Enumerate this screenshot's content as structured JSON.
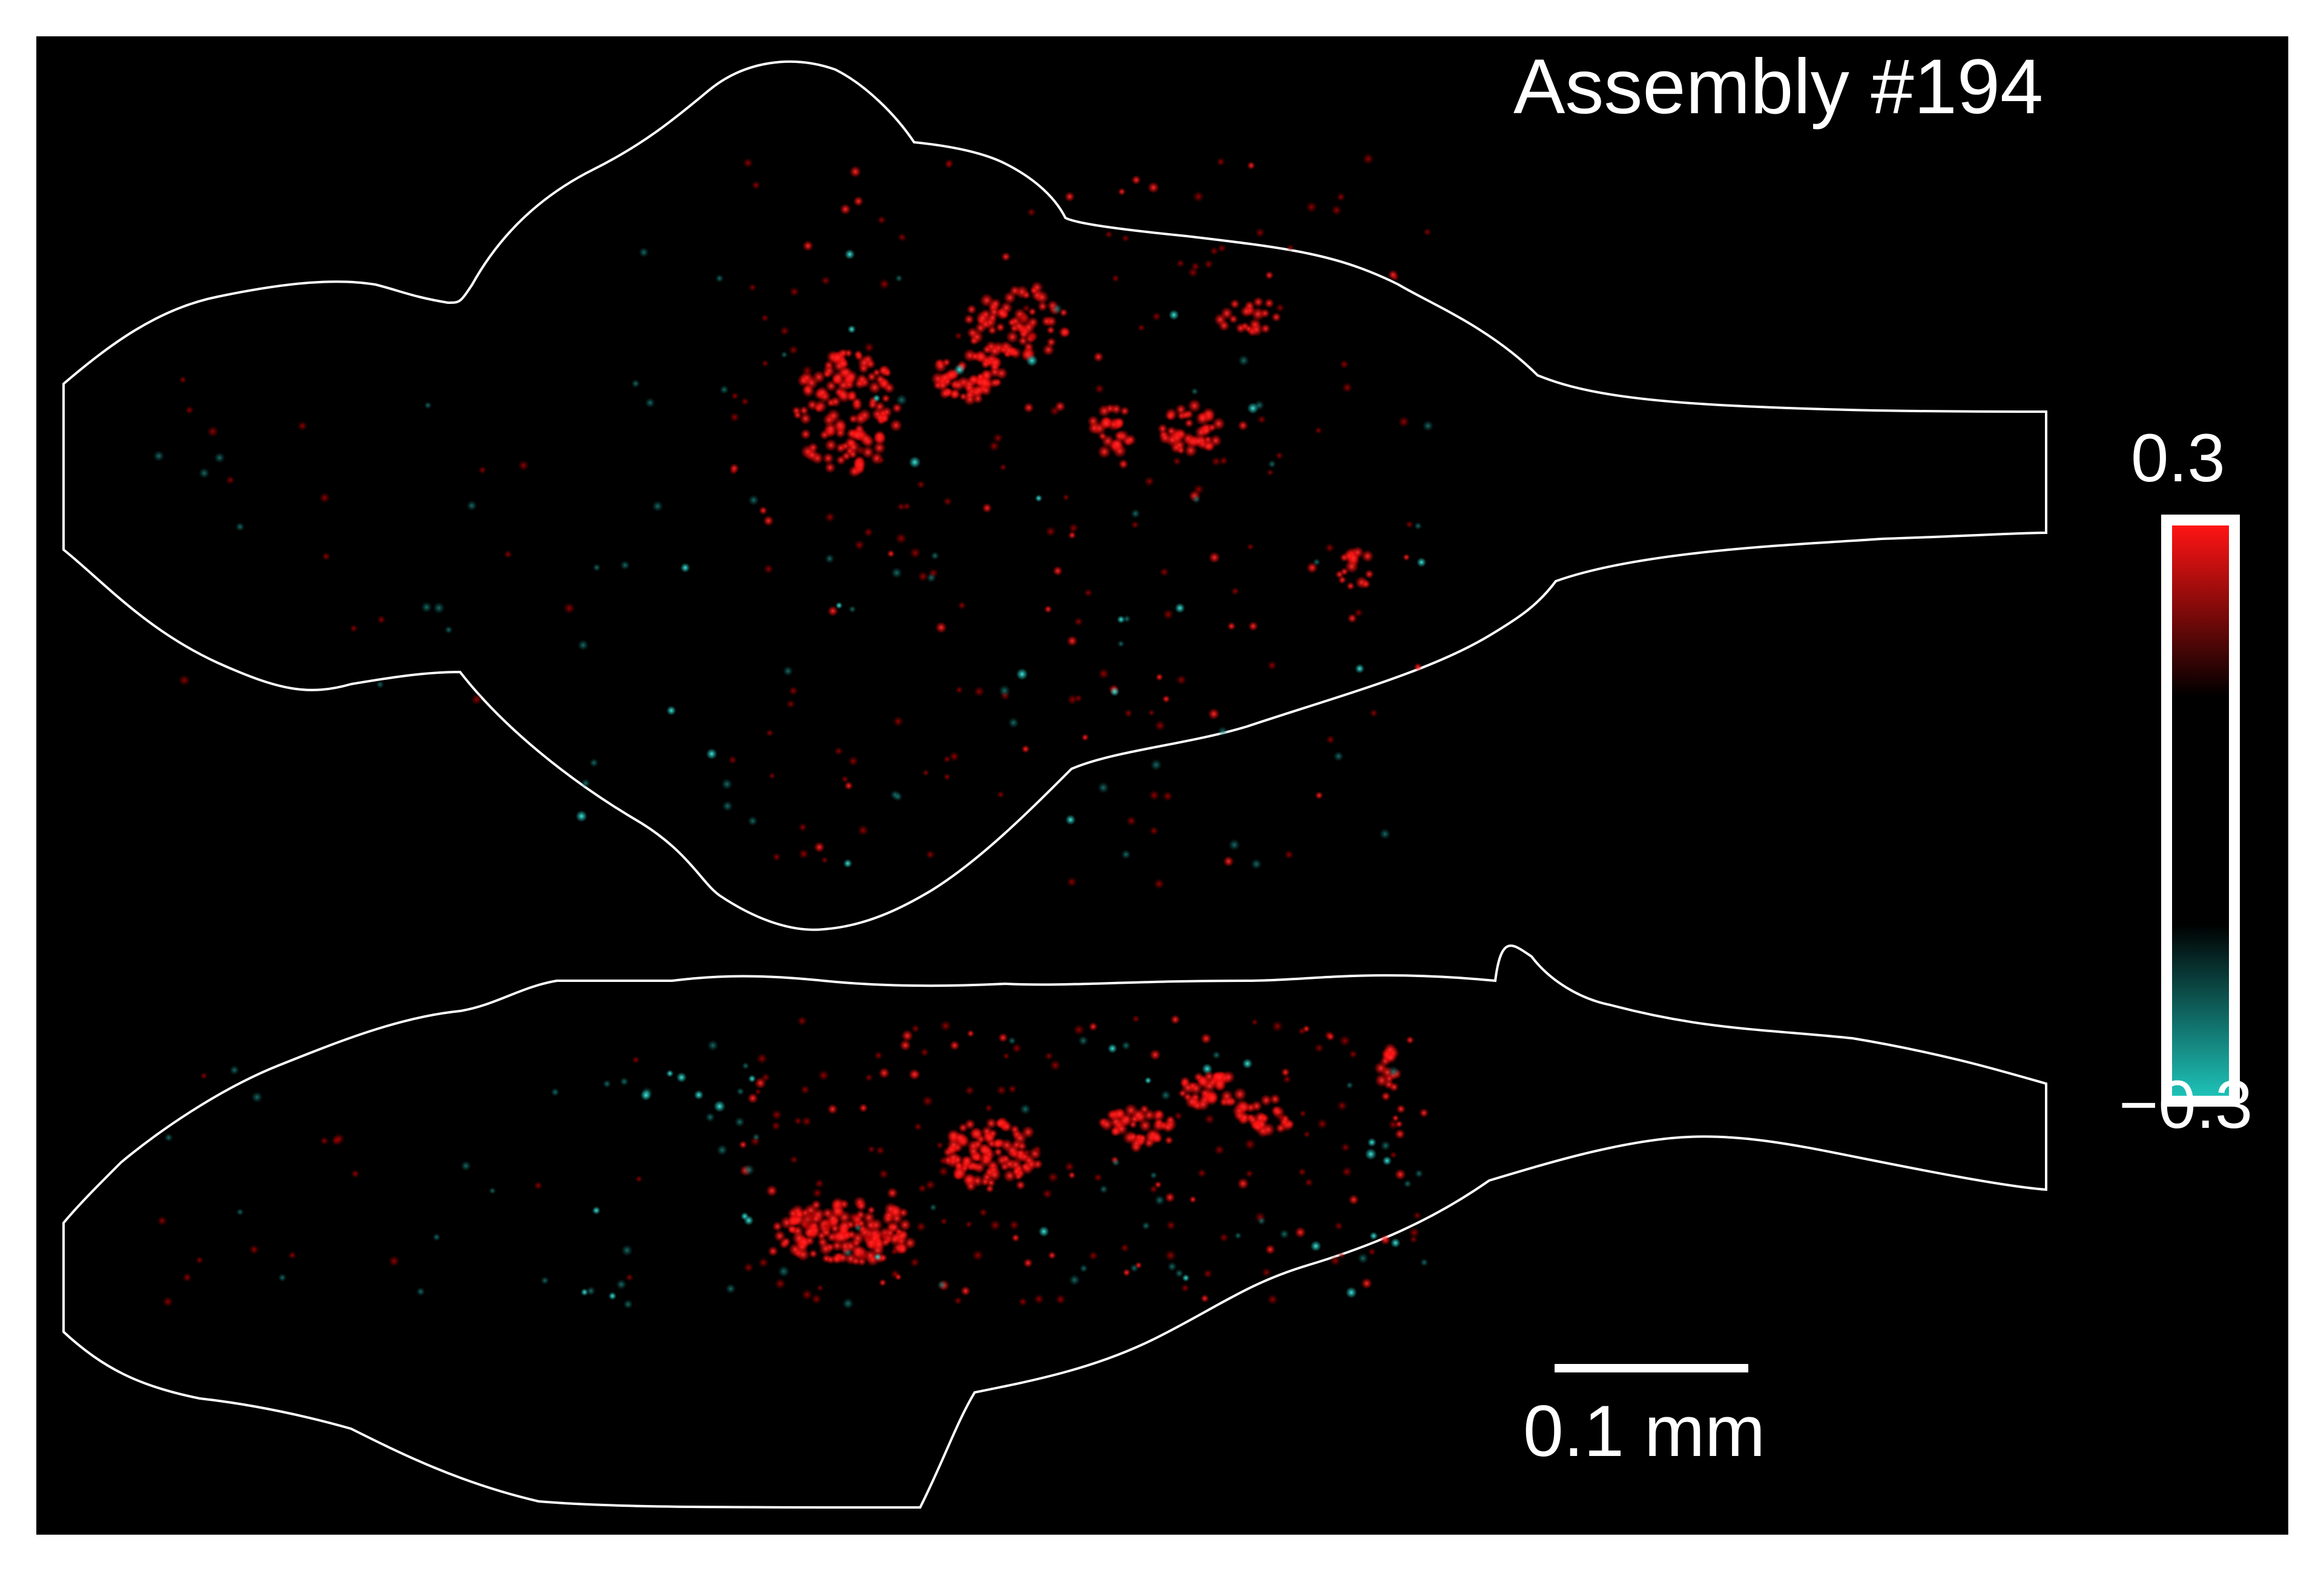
{
  "title": "Assembly #194",
  "colorbar": {
    "max_label": "0.3",
    "min_label": "−0.3",
    "colors": {
      "positive": "#ff1414",
      "zero": "#000000",
      "negative": "#1ec2b8"
    }
  },
  "scale_bar": {
    "label": "0.1 mm"
  },
  "outline_color": "#ffffff",
  "background": "#000000"
}
